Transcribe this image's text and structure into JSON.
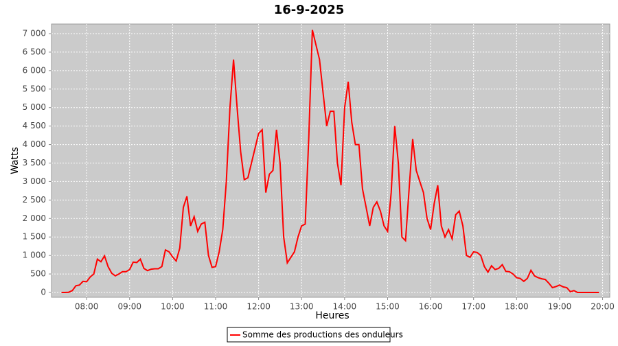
{
  "chart_data": {
    "type": "line",
    "title": "16-9-2025",
    "x_label": "Heures",
    "y_label": "Watts",
    "xlim": [
      431,
      1210
    ],
    "ylim": [
      -130,
      7260
    ],
    "xticks": [
      {
        "value": 480,
        "label": "08:00"
      },
      {
        "value": 540,
        "label": "09:00"
      },
      {
        "value": 600,
        "label": "10:00"
      },
      {
        "value": 660,
        "label": "11:00"
      },
      {
        "value": 720,
        "label": "12:00"
      },
      {
        "value": 780,
        "label": "13:00"
      },
      {
        "value": 840,
        "label": "14:00"
      },
      {
        "value": 900,
        "label": "15:00"
      },
      {
        "value": 960,
        "label": "16:00"
      },
      {
        "value": 1020,
        "label": "17:00"
      },
      {
        "value": 1080,
        "label": "18:00"
      },
      {
        "value": 1140,
        "label": "19:00"
      },
      {
        "value": 1200,
        "label": "20:00"
      }
    ],
    "yticks": [
      0,
      500,
      {
        "value": 1000,
        "label": "1 000"
      },
      {
        "value": 1500,
        "label": "1 500"
      },
      {
        "value": 2000,
        "label": "2 000"
      },
      {
        "value": 2500,
        "label": "2 500"
      },
      {
        "value": 3000,
        "label": "3 000"
      },
      {
        "value": 3500,
        "label": "3 500"
      },
      {
        "value": 4000,
        "label": "4 000"
      },
      {
        "value": 4500,
        "label": "4 500"
      },
      {
        "value": 5000,
        "label": "5 000"
      },
      {
        "value": 5500,
        "label": "5 500"
      },
      {
        "value": 6000,
        "label": "6 000"
      },
      {
        "value": 6500,
        "label": "6 500"
      },
      {
        "value": 7000,
        "label": "7 000"
      }
    ],
    "grid": true,
    "legend": "bottom",
    "x": [
      445,
      450,
      455,
      460,
      465,
      470,
      475,
      480,
      485,
      490,
      495,
      500,
      505,
      510,
      515,
      520,
      525,
      530,
      535,
      540,
      545,
      550,
      555,
      560,
      565,
      570,
      575,
      580,
      585,
      590,
      595,
      600,
      605,
      610,
      615,
      620,
      625,
      630,
      635,
      640,
      645,
      650,
      655,
      660,
      665,
      670,
      675,
      680,
      685,
      690,
      695,
      700,
      705,
      710,
      715,
      720,
      725,
      730,
      735,
      740,
      745,
      750,
      755,
      760,
      765,
      770,
      775,
      780,
      785,
      790,
      795,
      800,
      805,
      810,
      815,
      820,
      825,
      830,
      835,
      840,
      845,
      850,
      855,
      860,
      865,
      870,
      875,
      880,
      885,
      890,
      895,
      900,
      905,
      910,
      915,
      920,
      925,
      930,
      935,
      940,
      945,
      950,
      955,
      960,
      965,
      970,
      975,
      980,
      985,
      990,
      995,
      1000,
      1005,
      1010,
      1015,
      1020,
      1025,
      1030,
      1035,
      1040,
      1045,
      1050,
      1055,
      1060,
      1065,
      1070,
      1075,
      1080,
      1085,
      1090,
      1095,
      1100,
      1105,
      1110,
      1115,
      1120,
      1125,
      1130,
      1135,
      1140,
      1145,
      1150,
      1155,
      1160,
      1165,
      1195
    ],
    "series": [
      {
        "name": "Somme des productions des onduleurs",
        "color": "#ff0000",
        "values": [
          0,
          0,
          5,
          50,
          180,
          200,
          300,
          290,
          420,
          500,
          900,
          830,
          990,
          700,
          520,
          450,
          500,
          560,
          560,
          620,
          820,
          810,
          900,
          650,
          590,
          630,
          640,
          640,
          700,
          1150,
          1100,
          960,
          850,
          1200,
          2300,
          2600,
          1800,
          2050,
          1650,
          1850,
          1900,
          1000,
          680,
          700,
          1100,
          1700,
          3000,
          5000,
          6300,
          5000,
          3800,
          3050,
          3100,
          3500,
          3900,
          4300,
          4400,
          2700,
          3200,
          3300,
          4400,
          3500,
          1500,
          800,
          950,
          1100,
          1500,
          1800,
          1850,
          4200,
          7100,
          6700,
          6300,
          5400,
          4500,
          4900,
          4900,
          3500,
          2900,
          5000,
          5700,
          4600,
          4000,
          4000,
          2800,
          2300,
          1800,
          2300,
          2450,
          2200,
          1800,
          1650,
          2700,
          4500,
          3500,
          1500,
          1400,
          2800,
          4150,
          3300,
          3000,
          2700,
          2000,
          1700,
          2400,
          2900,
          1800,
          1500,
          1700,
          1450,
          2100,
          2200,
          1800,
          1000,
          950,
          1100,
          1080,
          1000,
          700,
          550,
          720,
          620,
          650,
          750,
          570,
          560,
          500,
          400,
          380,
          300,
          380,
          600,
          450,
          400,
          370,
          350,
          250,
          130,
          160,
          200,
          150,
          130,
          20,
          50,
          0,
          0
        ]
      }
    ]
  }
}
